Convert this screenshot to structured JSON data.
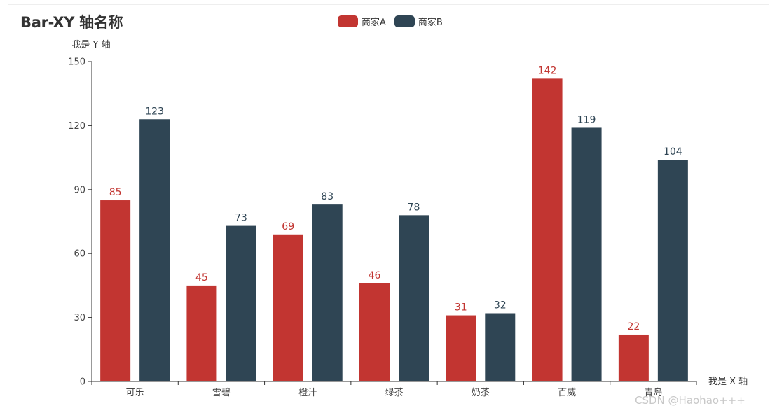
{
  "watermark": "CSDN @Haohao+++",
  "colors": {
    "series_a": "#c23531",
    "series_b": "#2f4554",
    "axis": "#333333",
    "tick_text": "#444444"
  },
  "chart_data": {
    "type": "bar",
    "title": "Bar-XY 轴名称",
    "xlabel": "我是 X 轴",
    "ylabel": "我是 Y 轴",
    "categories": [
      "可乐",
      "雪碧",
      "橙汁",
      "绿茶",
      "奶茶",
      "百威",
      "青岛"
    ],
    "series": [
      {
        "name": "商家A",
        "values": [
          85,
          45,
          69,
          46,
          31,
          142,
          22
        ]
      },
      {
        "name": "商家B",
        "values": [
          123,
          73,
          83,
          78,
          32,
          119,
          104
        ]
      }
    ],
    "ylim": [
      0,
      150
    ],
    "yticks": [
      0,
      30,
      60,
      90,
      120,
      150
    ],
    "grid": false,
    "legend": "top-center",
    "data_labels": true
  }
}
